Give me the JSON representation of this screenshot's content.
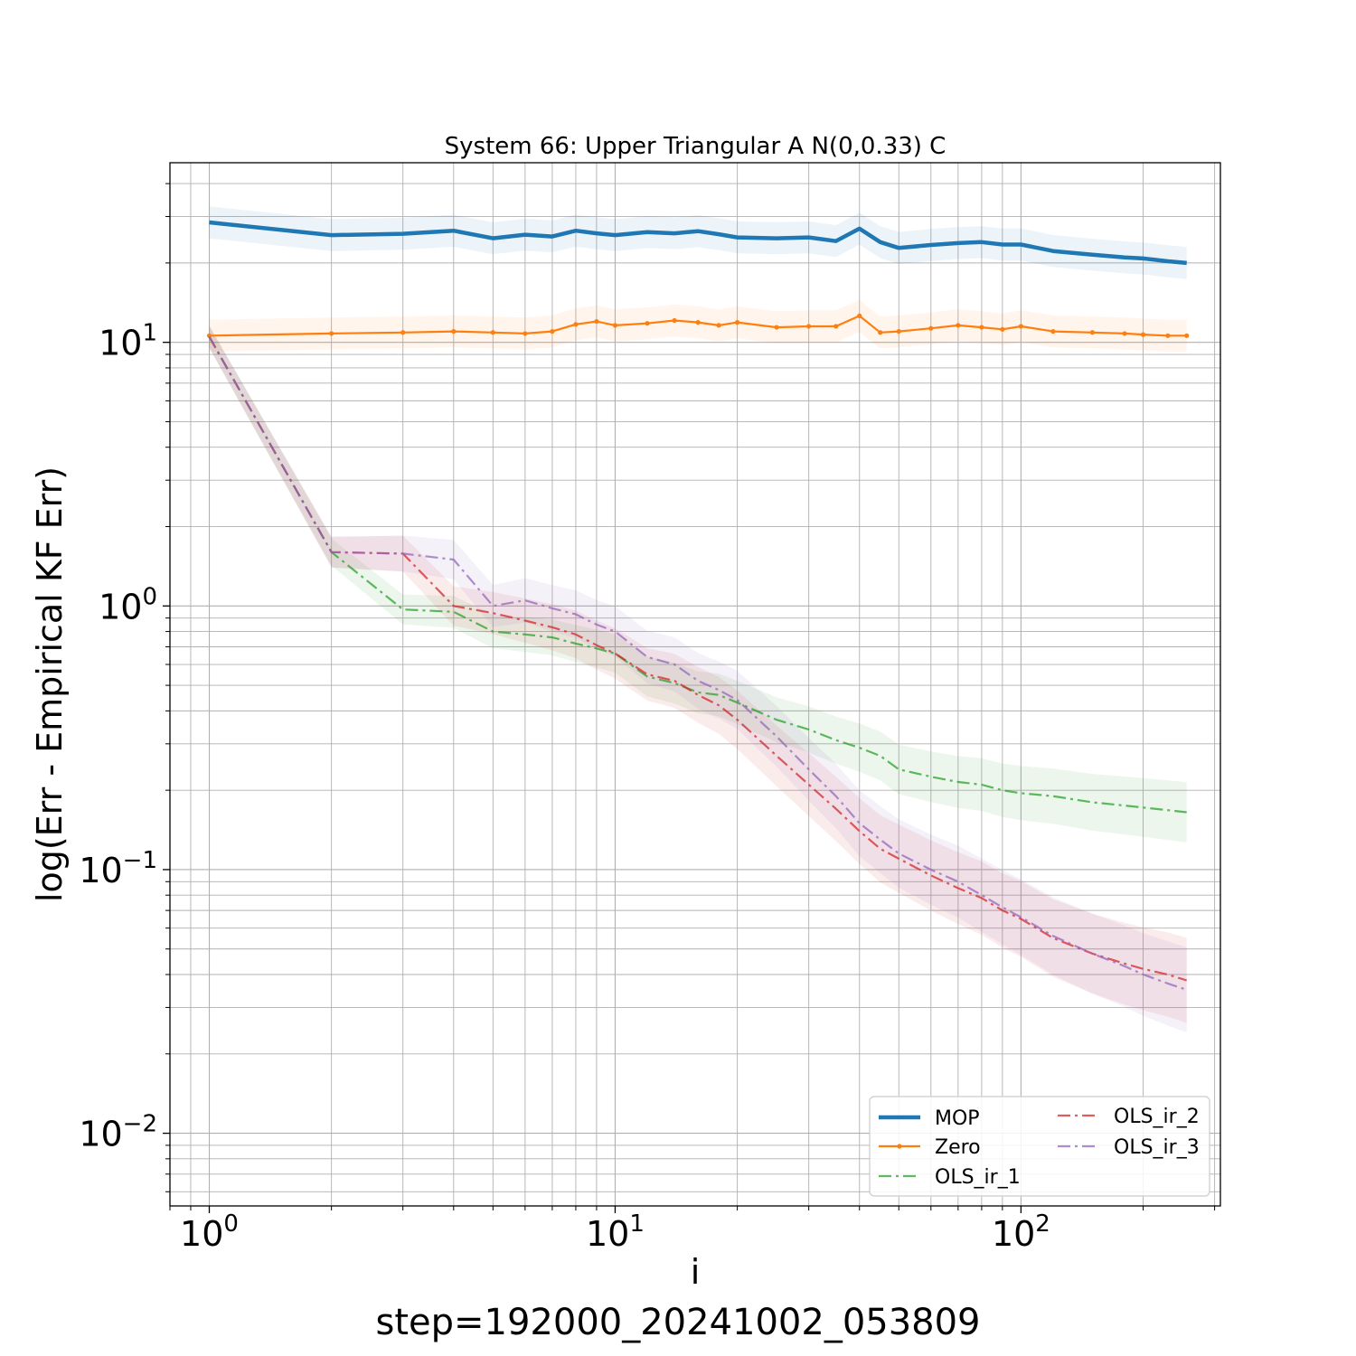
{
  "chart_data": {
    "type": "line",
    "title": "System 66: Upper Triangular A N(0,0.33) C",
    "xlabel": "i",
    "ylabel": "log(Err - Empirical KF Err)",
    "footer": "step=192000_20241002_053809",
    "xscale": "log",
    "yscale": "log",
    "xlim": [
      0.8,
      310
    ],
    "ylim": [
      0.0053,
      48
    ],
    "grid": "major+minor",
    "legend_placement": "lower-right",
    "x_ticks": [
      {
        "value": 1,
        "base": "10",
        "exp": "0"
      },
      {
        "value": 10,
        "base": "10",
        "exp": "1"
      },
      {
        "value": 100,
        "base": "10",
        "exp": "2"
      }
    ],
    "y_ticks": [
      {
        "value": 0.01,
        "base": "10",
        "exp": "−2"
      },
      {
        "value": 0.1,
        "base": "10",
        "exp": "−1"
      },
      {
        "value": 1,
        "base": "10",
        "exp": "0"
      },
      {
        "value": 10,
        "base": "10",
        "exp": "1"
      }
    ],
    "series": [
      {
        "name": "MOP",
        "color": "#1f77b4",
        "style": "solid",
        "width": 4.5,
        "x": [
          1,
          2,
          3,
          4,
          5,
          6,
          7,
          8,
          9,
          10,
          12,
          14,
          16,
          18,
          20,
          25,
          30,
          35,
          40,
          45,
          50,
          60,
          70,
          80,
          90,
          100,
          120,
          150,
          180,
          200,
          230,
          256
        ],
        "y": [
          28.5,
          25.5,
          25.8,
          26.5,
          24.8,
          25.6,
          25.2,
          26.5,
          25.9,
          25.5,
          26.2,
          25.9,
          26.4,
          25.7,
          25.0,
          24.8,
          25.0,
          24.2,
          27.0,
          24.0,
          22.8,
          23.4,
          23.8,
          24.0,
          23.5,
          23.5,
          22.2,
          21.5,
          21.0,
          20.8,
          20.3,
          20.0
        ]
      },
      {
        "name": "Zero",
        "color": "#ff7f0e",
        "style": "solid-dot",
        "width": 2.2,
        "x": [
          1,
          2,
          3,
          4,
          5,
          6,
          7,
          8,
          9,
          10,
          12,
          14,
          16,
          18,
          20,
          25,
          30,
          35,
          40,
          45,
          50,
          60,
          70,
          80,
          90,
          100,
          120,
          150,
          180,
          200,
          230,
          256
        ],
        "y": [
          10.6,
          10.8,
          10.9,
          11.0,
          10.9,
          10.8,
          11.0,
          11.7,
          12.0,
          11.6,
          11.8,
          12.1,
          11.9,
          11.6,
          11.9,
          11.4,
          11.5,
          11.5,
          12.6,
          10.9,
          11.0,
          11.3,
          11.6,
          11.4,
          11.2,
          11.5,
          11.0,
          10.9,
          10.8,
          10.7,
          10.6,
          10.6
        ]
      },
      {
        "name": "OLS_ir_1",
        "color": "#2ca02c",
        "style": "dashdot",
        "width": 2.2,
        "opacity": 0.75,
        "x": [
          1,
          2,
          3,
          4,
          5,
          6,
          7,
          8,
          9,
          10,
          12,
          14,
          16,
          18,
          20,
          25,
          30,
          35,
          40,
          45,
          50,
          60,
          70,
          80,
          90,
          100,
          120,
          150,
          180,
          200,
          230,
          256
        ],
        "y": [
          10.5,
          1.6,
          0.97,
          0.95,
          0.8,
          0.78,
          0.76,
          0.72,
          0.69,
          0.66,
          0.54,
          0.51,
          0.47,
          0.46,
          0.43,
          0.37,
          0.34,
          0.31,
          0.29,
          0.27,
          0.24,
          0.225,
          0.215,
          0.21,
          0.2,
          0.195,
          0.19,
          0.18,
          0.175,
          0.172,
          0.168,
          0.165
        ]
      },
      {
        "name": "OLS_ir_2",
        "color": "#d62728",
        "style": "dashdot",
        "width": 2.2,
        "opacity": 0.75,
        "x": [
          1,
          2,
          3,
          4,
          5,
          6,
          7,
          8,
          9,
          10,
          12,
          14,
          16,
          18,
          20,
          25,
          30,
          35,
          40,
          45,
          50,
          60,
          70,
          80,
          90,
          100,
          120,
          150,
          180,
          200,
          230,
          256
        ],
        "y": [
          10.5,
          1.6,
          1.58,
          1.0,
          0.94,
          0.88,
          0.83,
          0.78,
          0.71,
          0.66,
          0.55,
          0.52,
          0.46,
          0.42,
          0.37,
          0.27,
          0.21,
          0.17,
          0.14,
          0.12,
          0.11,
          0.095,
          0.085,
          0.078,
          0.07,
          0.065,
          0.055,
          0.048,
          0.044,
          0.042,
          0.04,
          0.038
        ]
      },
      {
        "name": "OLS_ir_3",
        "color": "#9467bd",
        "style": "dashdot",
        "width": 2.2,
        "opacity": 0.75,
        "x": [
          1,
          2,
          3,
          4,
          5,
          6,
          7,
          8,
          9,
          10,
          12,
          14,
          16,
          18,
          20,
          25,
          30,
          35,
          40,
          45,
          50,
          60,
          70,
          80,
          90,
          100,
          120,
          150,
          180,
          200,
          230,
          256
        ],
        "y": [
          10.5,
          1.6,
          1.58,
          1.5,
          1.0,
          1.05,
          0.98,
          0.93,
          0.85,
          0.8,
          0.64,
          0.6,
          0.52,
          0.48,
          0.44,
          0.32,
          0.24,
          0.19,
          0.15,
          0.13,
          0.115,
          0.1,
          0.09,
          0.08,
          0.072,
          0.066,
          0.056,
          0.048,
          0.043,
          0.04,
          0.037,
          0.035
        ]
      }
    ]
  }
}
